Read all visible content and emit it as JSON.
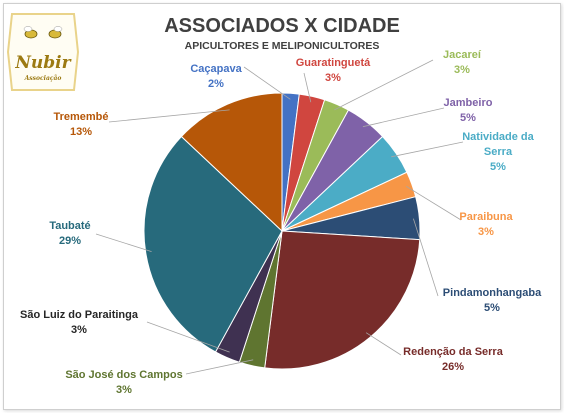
{
  "chart_data": {
    "type": "pie",
    "title": "ASSOCIADOS X CIDADE",
    "subtitle": "APICULTORES E MELIPONICULTORES",
    "slices": [
      {
        "label": "Caçapava",
        "value": 2,
        "percent": "2%",
        "color": "#4472c4"
      },
      {
        "label": "Guaratinguetá",
        "value": 3,
        "percent": "3%",
        "color": "#d0463f"
      },
      {
        "label": "Jacareí",
        "value": 3,
        "percent": "3%",
        "color": "#9bbb59"
      },
      {
        "label": "Jambeiro",
        "value": 5,
        "percent": "5%",
        "color": "#7f62a8"
      },
      {
        "label": "Natividade da Serra",
        "value": 5,
        "percent": "5%",
        "color": "#4bacc6"
      },
      {
        "label": "Paraibuna",
        "value": 3,
        "percent": "3%",
        "color": "#f79646"
      },
      {
        "label": "Pindamonhangaba",
        "value": 5,
        "percent": "5%",
        "color": "#2c4d75"
      },
      {
        "label": "Redenção da Serra",
        "value": 26,
        "percent": "26%",
        "color": "#772c2a"
      },
      {
        "label": "São José dos Campos",
        "value": 3,
        "percent": "3%",
        "color": "#5f7530"
      },
      {
        "label": "São Luiz do Paraitinga",
        "value": 3,
        "percent": "3%",
        "color": "#3f3151"
      },
      {
        "label": "Taubaté",
        "value": 29,
        "percent": "29%",
        "color": "#276a7c"
      },
      {
        "label": "Tremembé",
        "value": 13,
        "percent": "13%",
        "color": "#b65708"
      }
    ],
    "legend": "none"
  },
  "logo": {
    "text": "Nubir",
    "subtext": "Associação"
  }
}
